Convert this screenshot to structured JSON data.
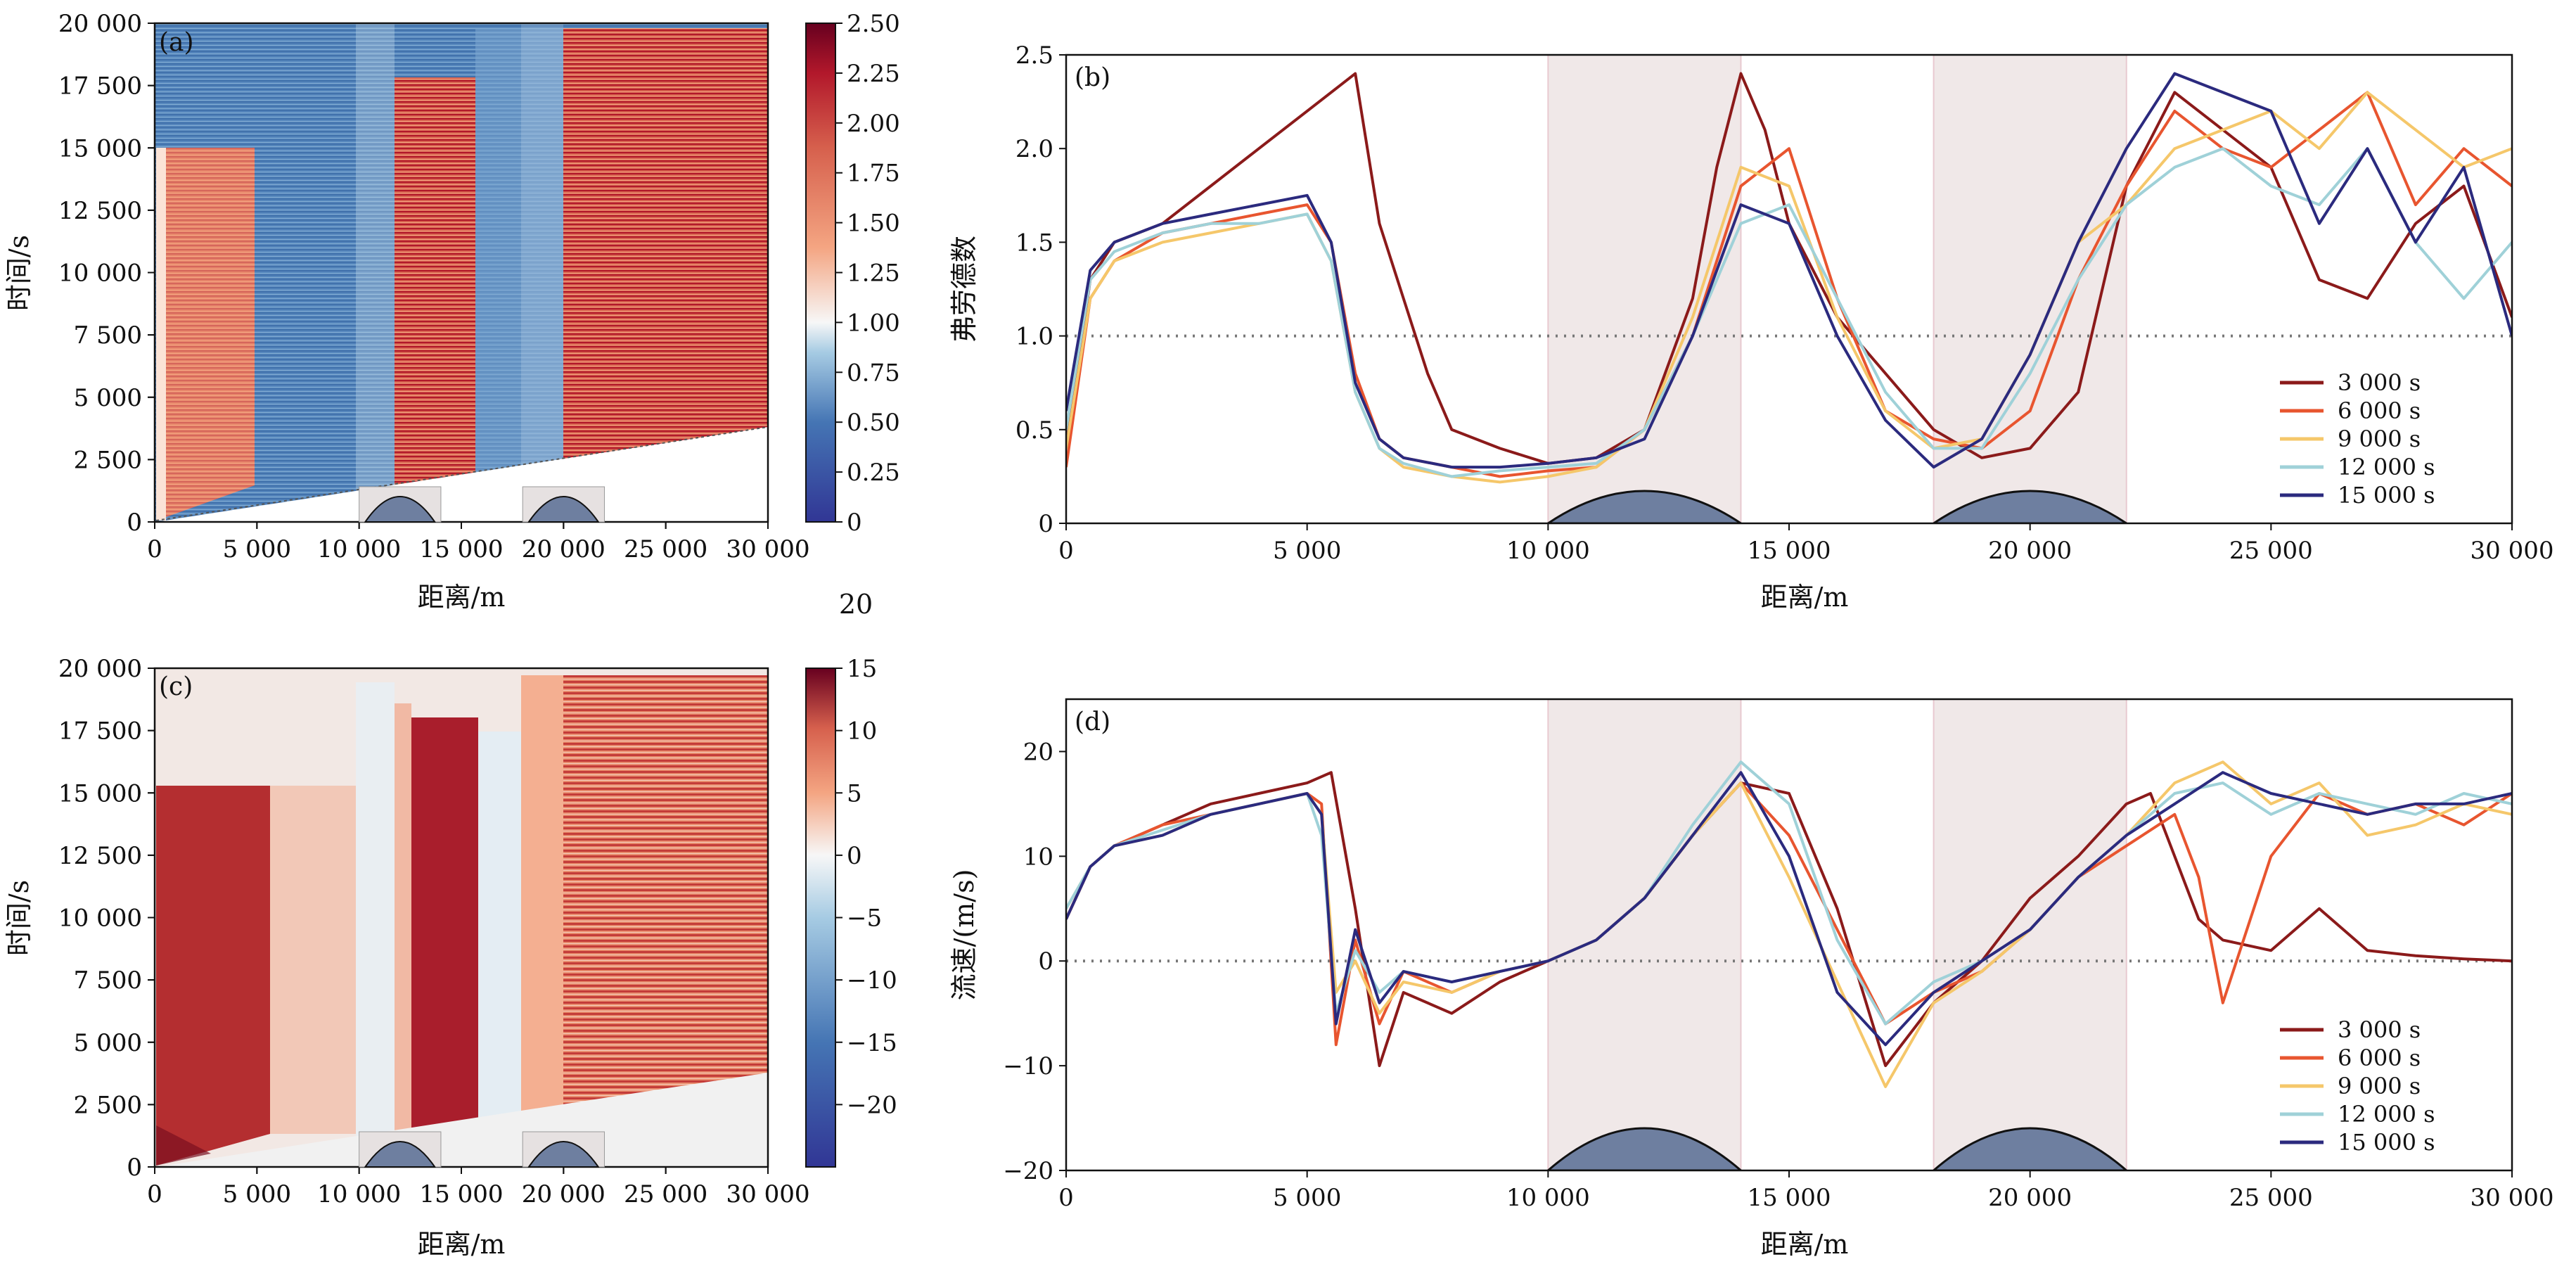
{
  "figure": {
    "stray_label": "20",
    "x_axis_label": "距离/m",
    "x_range": [
      0,
      30000
    ],
    "x_ticks": [
      0,
      5000,
      10000,
      15000,
      20000,
      25000,
      30000
    ],
    "x_tick_labels": [
      "0",
      "5 000",
      "10 000",
      "15 000",
      "20 000",
      "25 000",
      "30 000"
    ],
    "shaded_regions": [
      [
        10000,
        14000
      ],
      [
        18000,
        22000
      ]
    ],
    "hills": [
      {
        "center": 12000,
        "half_width": 2000
      },
      {
        "center": 20000,
        "half_width": 2000
      }
    ]
  },
  "chart_data": [
    {
      "id": "a",
      "panel_label": "(a)",
      "type": "heatmap",
      "xlabel": "距离/m",
      "ylabel": "时间/s",
      "xlim": [
        0,
        30000
      ],
      "ylim": [
        0,
        20000
      ],
      "y_ticks": [
        0,
        2500,
        5000,
        7500,
        10000,
        12500,
        15000,
        17500,
        20000
      ],
      "y_tick_labels": [
        "0",
        "2 500",
        "5 000",
        "7 500",
        "10 000",
        "12 500",
        "15 000",
        "17 500",
        "20 000"
      ],
      "colorbar": {
        "range": [
          0,
          2.5
        ],
        "center": 1.0,
        "ticks": [
          0,
          0.25,
          0.5,
          0.75,
          1.0,
          1.25,
          1.5,
          1.75,
          2.0,
          2.25,
          2.5
        ],
        "tick_labels": [
          "0",
          "0.25",
          "0.50",
          "0.75",
          "1.00",
          "1.25",
          "1.50",
          "1.75",
          "2.00",
          "2.25",
          "2.50"
        ],
        "low_color": "#313695",
        "mid_color": "#f7f7f7",
        "high_color": "#67001f"
      }
    },
    {
      "id": "b",
      "panel_label": "(b)",
      "type": "line",
      "xlabel": "距离/m",
      "ylabel": "弗劳德数",
      "xlim": [
        0,
        30000
      ],
      "ylim": [
        0,
        2.5
      ],
      "y_ticks": [
        0,
        0.5,
        1.0,
        1.5,
        2.0,
        2.5
      ],
      "y_tick_labels": [
        "0",
        "0.5",
        "1.0",
        "1.5",
        "2.0",
        "2.5"
      ],
      "reference_line": 1.0,
      "legend_position": "lower-right",
      "series": [
        {
          "name": "3 000 s",
          "color": "#8b1a1a",
          "x": [
            0,
            500,
            1000,
            2000,
            3000,
            4000,
            5000,
            5500,
            6000,
            6500,
            7000,
            7500,
            8000,
            9000,
            10000,
            11000,
            12000,
            13000,
            13500,
            14000,
            14500,
            15000,
            16000,
            17000,
            18000,
            19000,
            20000,
            21000,
            22000,
            23000,
            24000,
            25000,
            26000,
            27000,
            28000,
            29000,
            30000
          ],
          "y": [
            0.4,
            1.3,
            1.5,
            1.6,
            1.8,
            2.0,
            2.2,
            2.3,
            2.4,
            1.6,
            1.2,
            0.8,
            0.5,
            0.4,
            0.32,
            0.35,
            0.5,
            1.2,
            1.9,
            2.4,
            2.1,
            1.6,
            1.1,
            0.8,
            0.5,
            0.35,
            0.4,
            0.7,
            1.8,
            2.3,
            2.1,
            1.9,
            1.3,
            1.2,
            1.6,
            1.8,
            1.1
          ]
        },
        {
          "name": "6 000 s",
          "color": "#e8552f",
          "x": [
            0,
            500,
            1000,
            2000,
            3000,
            4000,
            5000,
            5500,
            6000,
            6500,
            7000,
            8000,
            9000,
            10000,
            11000,
            12000,
            13000,
            14000,
            15000,
            16000,
            17000,
            18000,
            19000,
            20000,
            21000,
            22000,
            23000,
            24000,
            25000,
            26000,
            27000,
            28000,
            29000,
            30000
          ],
          "y": [
            0.3,
            1.2,
            1.4,
            1.55,
            1.6,
            1.65,
            1.7,
            1.5,
            0.8,
            0.45,
            0.35,
            0.3,
            0.25,
            0.28,
            0.3,
            0.5,
            1.0,
            1.8,
            2.0,
            1.2,
            0.6,
            0.45,
            0.4,
            0.6,
            1.3,
            1.8,
            2.2,
            2.0,
            1.9,
            2.1,
            2.3,
            1.7,
            2.0,
            1.8
          ]
        },
        {
          "name": "9 000 s",
          "color": "#f5c76a",
          "x": [
            0,
            500,
            1000,
            2000,
            3000,
            4000,
            5000,
            5500,
            6000,
            6500,
            7000,
            8000,
            9000,
            10000,
            11000,
            12000,
            13000,
            14000,
            15000,
            16000,
            17000,
            18000,
            19000,
            20000,
            21000,
            22000,
            23000,
            24000,
            25000,
            26000,
            27000,
            28000,
            29000,
            30000
          ],
          "y": [
            0.4,
            1.2,
            1.4,
            1.5,
            1.55,
            1.6,
            1.65,
            1.4,
            0.7,
            0.4,
            0.3,
            0.25,
            0.22,
            0.25,
            0.3,
            0.5,
            1.1,
            1.9,
            1.8,
            1.1,
            0.6,
            0.4,
            0.45,
            0.9,
            1.5,
            1.7,
            2.0,
            2.1,
            2.2,
            2.0,
            2.3,
            2.1,
            1.9,
            2.0
          ]
        },
        {
          "name": "12 000 s",
          "color": "#9fd1d8",
          "x": [
            0,
            500,
            1000,
            2000,
            3000,
            4000,
            5000,
            5500,
            6000,
            6500,
            7000,
            8000,
            9000,
            10000,
            11000,
            12000,
            13000,
            14000,
            15000,
            16000,
            17000,
            18000,
            19000,
            20000,
            21000,
            22000,
            23000,
            24000,
            25000,
            26000,
            27000,
            28000,
            29000,
            30000
          ],
          "y": [
            0.5,
            1.3,
            1.45,
            1.55,
            1.6,
            1.6,
            1.65,
            1.4,
            0.7,
            0.4,
            0.32,
            0.25,
            0.28,
            0.3,
            0.32,
            0.5,
            1.0,
            1.6,
            1.7,
            1.2,
            0.7,
            0.4,
            0.4,
            0.8,
            1.3,
            1.7,
            1.9,
            2.0,
            1.8,
            1.7,
            2.0,
            1.5,
            1.2,
            1.5
          ]
        },
        {
          "name": "15 000 s",
          "color": "#2b2a7e",
          "x": [
            0,
            500,
            1000,
            2000,
            3000,
            4000,
            5000,
            5500,
            6000,
            6500,
            7000,
            8000,
            9000,
            10000,
            11000,
            12000,
            13000,
            14000,
            15000,
            16000,
            17000,
            18000,
            19000,
            20000,
            21000,
            22000,
            23000,
            24000,
            25000,
            26000,
            27000,
            28000,
            29000,
            30000
          ],
          "y": [
            0.6,
            1.35,
            1.5,
            1.6,
            1.65,
            1.7,
            1.75,
            1.5,
            0.75,
            0.45,
            0.35,
            0.3,
            0.3,
            0.32,
            0.35,
            0.45,
            1.0,
            1.7,
            1.6,
            1.0,
            0.55,
            0.3,
            0.45,
            0.9,
            1.5,
            2.0,
            2.4,
            2.3,
            2.2,
            1.6,
            2.0,
            1.5,
            1.9,
            1.0
          ]
        }
      ]
    },
    {
      "id": "c",
      "panel_label": "(c)",
      "type": "heatmap",
      "xlabel": "距离/m",
      "ylabel": "时间/s",
      "xlim": [
        0,
        30000
      ],
      "ylim": [
        0,
        20000
      ],
      "y_ticks": [
        0,
        2500,
        5000,
        7500,
        10000,
        12500,
        15000,
        17500,
        20000
      ],
      "y_tick_labels": [
        "0",
        "2 500",
        "5 000",
        "7 500",
        "10 000",
        "12 500",
        "15 000",
        "17 500",
        "20 000"
      ],
      "colorbar": {
        "range": [
          -25,
          15
        ],
        "center": 0,
        "ticks": [
          -20,
          -15,
          -10,
          -5,
          0,
          5,
          10,
          15
        ],
        "tick_labels": [
          "−20",
          "−15",
          "−10",
          "−5",
          "0",
          "5",
          "10",
          "15"
        ],
        "low_color": "#313695",
        "mid_color": "#f7f7f7",
        "high_color": "#67001f"
      }
    },
    {
      "id": "d",
      "panel_label": "(d)",
      "type": "line",
      "xlabel": "距离/m",
      "ylabel": "流速/(m/s)",
      "xlim": [
        0,
        30000
      ],
      "ylim": [
        -20,
        25
      ],
      "y_ticks": [
        -20,
        -10,
        0,
        10,
        20
      ],
      "y_tick_labels": [
        "−20",
        "−10",
        "0",
        "10",
        "20"
      ],
      "reference_line": 0,
      "legend_position": "lower-right",
      "series": [
        {
          "name": "3 000 s",
          "color": "#8b1a1a",
          "x": [
            0,
            500,
            1000,
            2000,
            3000,
            4000,
            5000,
            5500,
            6000,
            6500,
            7000,
            8000,
            9000,
            10000,
            11000,
            12000,
            13000,
            14000,
            15000,
            16000,
            17000,
            18000,
            19000,
            20000,
            21000,
            22000,
            22500,
            23000,
            23500,
            24000,
            25000,
            26000,
            27000,
            28000,
            29000,
            30000
          ],
          "y": [
            4,
            9,
            11,
            13,
            15,
            16,
            17,
            18,
            5,
            -10,
            -3,
            -5,
            -2,
            0,
            2,
            6,
            12,
            17,
            16,
            5,
            -10,
            -4,
            0,
            6,
            10,
            15,
            16,
            10,
            4,
            2,
            1,
            5,
            1,
            0.5,
            0.2,
            0
          ]
        },
        {
          "name": "6 000 s",
          "color": "#e8552f",
          "x": [
            0,
            500,
            1000,
            2000,
            3000,
            4000,
            5000,
            5300,
            5600,
            6000,
            6500,
            7000,
            8000,
            9000,
            10000,
            11000,
            12000,
            13000,
            14000,
            15000,
            16000,
            17000,
            18000,
            19000,
            20000,
            21000,
            22000,
            23000,
            23500,
            24000,
            25000,
            26000,
            27000,
            28000,
            29000,
            30000
          ],
          "y": [
            4,
            9,
            11,
            13,
            14,
            15,
            16,
            15,
            -8,
            2,
            -6,
            -1,
            -3,
            -1,
            0,
            2,
            6,
            12,
            17,
            12,
            3,
            -6,
            -3,
            -1,
            3,
            8,
            11,
            14,
            8,
            -4,
            10,
            16,
            14,
            15,
            13,
            16
          ]
        },
        {
          "name": "9 000 s",
          "color": "#f5c76a",
          "x": [
            0,
            500,
            1000,
            2000,
            3000,
            4000,
            5000,
            5300,
            5600,
            6000,
            6500,
            7000,
            8000,
            9000,
            10000,
            11000,
            12000,
            13000,
            14000,
            15000,
            16000,
            17000,
            18000,
            19000,
            20000,
            21000,
            22000,
            23000,
            24000,
            25000,
            26000,
            27000,
            28000,
            29000,
            30000
          ],
          "y": [
            5,
            9,
            11,
            12,
            14,
            15,
            16,
            14,
            -3,
            0,
            -5,
            -2,
            -3,
            -1,
            0,
            2,
            6,
            12,
            17,
            8,
            -2,
            -12,
            -4,
            -1,
            3,
            8,
            12,
            17,
            19,
            15,
            17,
            12,
            13,
            15,
            14
          ]
        },
        {
          "name": "12 000 s",
          "color": "#9fd1d8",
          "x": [
            0,
            500,
            1000,
            2000,
            3000,
            4000,
            5000,
            5300,
            5600,
            6000,
            6500,
            7000,
            8000,
            9000,
            10000,
            11000,
            12000,
            13000,
            14000,
            15000,
            16000,
            17000,
            18000,
            19000,
            20000,
            21000,
            22000,
            23000,
            24000,
            25000,
            26000,
            27000,
            28000,
            29000,
            30000
          ],
          "y": [
            5,
            9,
            11,
            12.5,
            14,
            15,
            16,
            12,
            -5,
            1,
            -3,
            -1,
            -2,
            -1,
            0,
            2,
            6,
            13,
            19,
            15,
            2,
            -6,
            -2,
            0,
            3,
            8,
            12,
            16,
            17,
            14,
            16,
            15,
            14,
            16,
            15
          ]
        },
        {
          "name": "15 000 s",
          "color": "#2b2a7e",
          "x": [
            0,
            500,
            1000,
            2000,
            3000,
            4000,
            5000,
            5300,
            5600,
            6000,
            6500,
            7000,
            8000,
            9000,
            10000,
            11000,
            12000,
            13000,
            14000,
            15000,
            16000,
            17000,
            18000,
            19000,
            20000,
            21000,
            22000,
            23000,
            24000,
            25000,
            26000,
            27000,
            28000,
            29000,
            30000
          ],
          "y": [
            4,
            9,
            11,
            12,
            14,
            15,
            16,
            14,
            -6,
            3,
            -4,
            -1,
            -2,
            -1,
            0,
            2,
            6,
            12,
            18,
            10,
            -3,
            -8,
            -3,
            0,
            3,
            8,
            12,
            15,
            18,
            16,
            15,
            14,
            15,
            15,
            16
          ]
        }
      ]
    }
  ]
}
